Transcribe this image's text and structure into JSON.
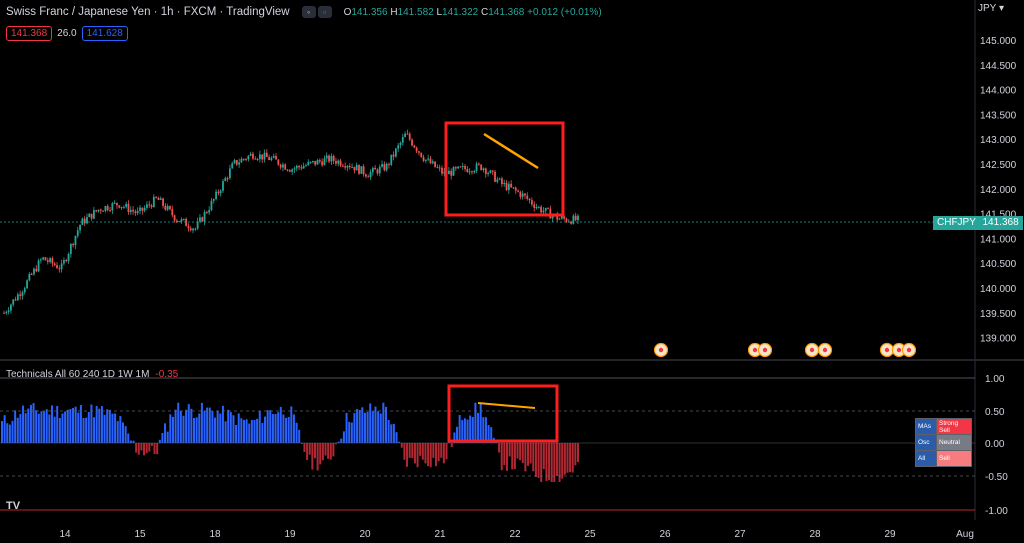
{
  "header": {
    "symbol_title": "Swiss Franc / Japanese Yen · 1h · FXCM · TradingView",
    "ohlc": {
      "o": "141.356",
      "h": "141.582",
      "l": "141.322",
      "c": "141.368",
      "chg": "+0.012 (+0.01%)"
    },
    "labels": {
      "o": "O",
      "h": "H",
      "l": "L",
      "c": "C"
    }
  },
  "quote": {
    "sell": "141.368",
    "spread": "26.0",
    "buy": "141.628"
  },
  "currency": "JPY",
  "price_axis": [
    "145.000",
    "144.500",
    "144.000",
    "143.500",
    "143.000",
    "142.500",
    "142.000",
    "141.500",
    "141.000",
    "140.500",
    "140.000",
    "139.500",
    "139.000"
  ],
  "last_price": {
    "symbol": "CHFJPY",
    "value": "141.368"
  },
  "x_axis": [
    "14",
    "15",
    "18",
    "19",
    "20",
    "21",
    "22",
    "25",
    "26",
    "27",
    "28",
    "29",
    "Aug"
  ],
  "indicator": {
    "title": "Technicals All 60 240 1D 1W 1M",
    "value": "-0.35",
    "axis": [
      "1.00",
      "0.50",
      "0.00",
      "-0.50",
      "-1.00"
    ]
  },
  "tech_table": [
    {
      "k": "MAs",
      "v": "Strong Sell",
      "color": "#f23645"
    },
    {
      "k": "Osc",
      "v": "Neutral",
      "color": "#787b86"
    },
    {
      "k": "All",
      "v": "Sell",
      "color": "#f77c80"
    }
  ],
  "colors": {
    "up": "#26a69a",
    "down": "#ef5350",
    "bar_up": "#2962ff",
    "bar_down": "#b22833",
    "annot_box": "#ff1e1e",
    "annot_line": "#ffa500"
  },
  "logo": "TV",
  "chart_data": {
    "type": "candlestick",
    "price": [
      139.5,
      140.0,
      140.6,
      140.4,
      141.3,
      141.6,
      141.7,
      141.5,
      141.8,
      141.4,
      141.2,
      141.8,
      142.5,
      142.7,
      142.6,
      142.4,
      142.5,
      142.6,
      142.5,
      142.3,
      142.45,
      143.1,
      142.6,
      142.3,
      142.4,
      142.45,
      142.1,
      141.9,
      141.6,
      141.4,
      141.368
    ],
    "indicator_values": [
      0.3,
      0.5,
      0.5,
      0.5,
      0.5,
      0.5,
      0.4,
      -0.1,
      -0.15,
      0.55,
      0.5,
      0.5,
      0.4,
      0.3,
      0.5,
      0.5,
      -0.3,
      -0.3,
      0.4,
      0.5,
      0.55,
      -0.3,
      -0.25,
      -0.3,
      0.45,
      0.55,
      -0.3,
      -0.35,
      -0.5,
      -0.55,
      -0.35
    ],
    "ylabel_right": "JPY"
  }
}
